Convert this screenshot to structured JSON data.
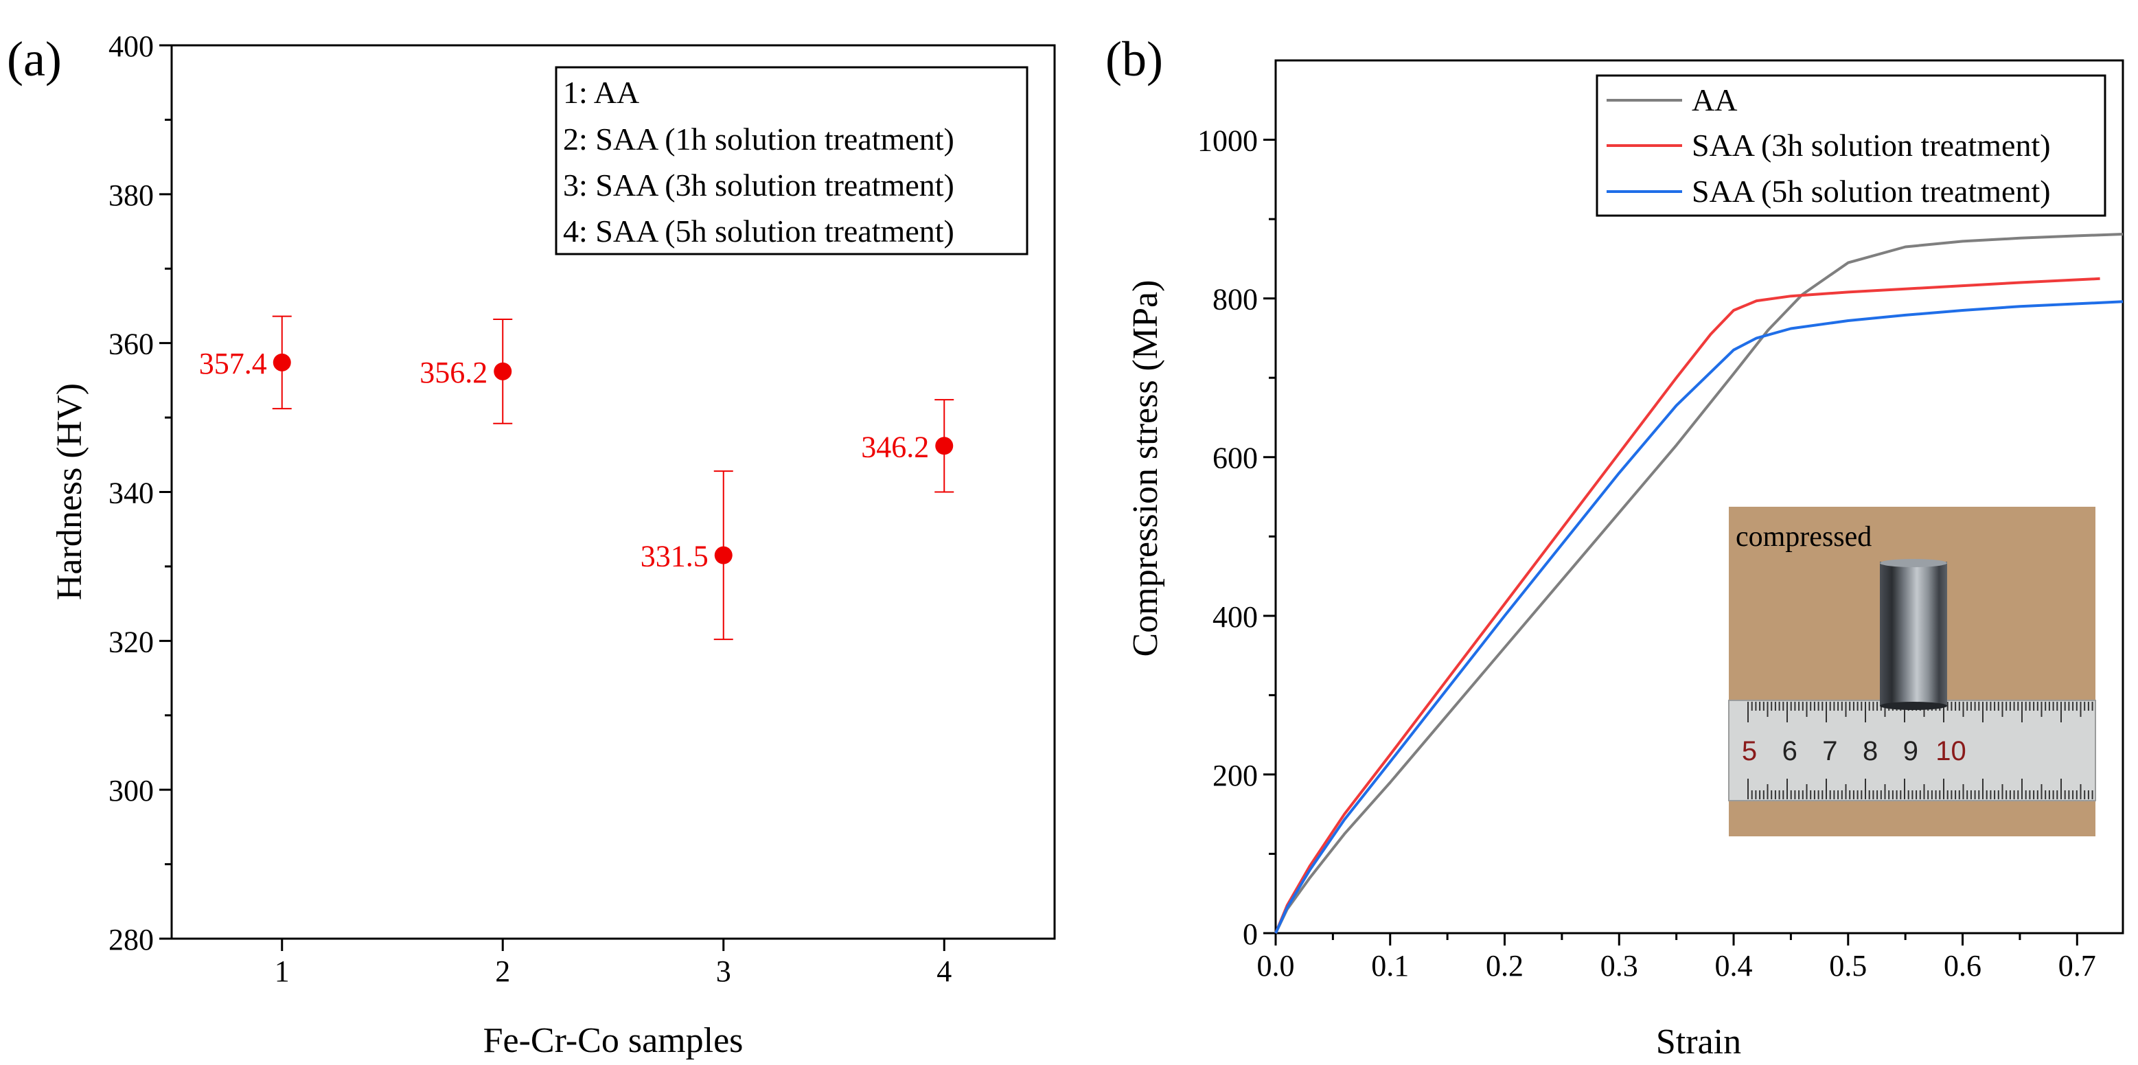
{
  "colors": {
    "marker": "#ee0000",
    "AA": "#7f7f7f",
    "SAA3": "#f03a3a",
    "SAA5": "#1f6ee8"
  },
  "chart_data": [
    {
      "type": "scatter",
      "panel_label": "(a)",
      "xlabel": "Fe-Cr-Co samples",
      "ylabel": "Hardness (HV)",
      "xlim": [
        0.5,
        4.5
      ],
      "ylim": [
        280,
        400
      ],
      "xticks": [
        1,
        2,
        3,
        4
      ],
      "yticks": [
        280,
        300,
        320,
        340,
        360,
        380,
        400
      ],
      "grid": false,
      "legend_position": "top-right",
      "legend": [
        "1: AA",
        "2: SAA (1h solution treatment)",
        "3: SAA (3h solution treatment)",
        "4: SAA (5h solution treatment)"
      ],
      "points": [
        {
          "x": 1,
          "y": 357.4,
          "err_low": 351.2,
          "err_high": 363.6,
          "label": "357.4"
        },
        {
          "x": 2,
          "y": 356.2,
          "err_low": 349.2,
          "err_high": 363.2,
          "label": "356.2"
        },
        {
          "x": 3,
          "y": 331.5,
          "err_low": 320.2,
          "err_high": 342.8,
          "label": "331.5"
        },
        {
          "x": 4,
          "y": 346.2,
          "err_low": 340.0,
          "err_high": 352.4,
          "label": "346.2"
        }
      ]
    },
    {
      "type": "line",
      "panel_label": "(b)",
      "xlabel": "Strain",
      "ylabel": "Compression stress (MPa)",
      "xlim": [
        0,
        0.74
      ],
      "ylim": [
        0,
        1100
      ],
      "xticks": [
        0.0,
        0.1,
        0.2,
        0.3,
        0.4,
        0.5,
        0.6,
        0.7
      ],
      "yticks": [
        0,
        200,
        400,
        600,
        800,
        1000
      ],
      "grid": false,
      "legend_position": "top-right",
      "series": [
        {
          "name": "AA",
          "color_key": "AA",
          "x": [
            0,
            0.01,
            0.03,
            0.06,
            0.1,
            0.15,
            0.2,
            0.25,
            0.3,
            0.35,
            0.4,
            0.43,
            0.46,
            0.5,
            0.55,
            0.6,
            0.65,
            0.7,
            0.74
          ],
          "y": [
            0,
            30,
            70,
            125,
            190,
            275,
            360,
            445,
            530,
            615,
            705,
            760,
            805,
            845,
            865,
            872,
            876,
            879,
            881
          ]
        },
        {
          "name": "SAA (3h solution treatment)",
          "color_key": "SAA3",
          "x": [
            0,
            0.01,
            0.03,
            0.06,
            0.1,
            0.15,
            0.2,
            0.25,
            0.3,
            0.35,
            0.38,
            0.4,
            0.42,
            0.45,
            0.5,
            0.55,
            0.6,
            0.65,
            0.72
          ],
          "y": [
            0,
            35,
            85,
            150,
            225,
            320,
            415,
            510,
            605,
            700,
            755,
            785,
            797,
            803,
            808,
            812,
            816,
            820,
            825
          ]
        },
        {
          "name": "SAA (5h solution treatment)",
          "color_key": "SAA5",
          "x": [
            0,
            0.01,
            0.03,
            0.06,
            0.1,
            0.15,
            0.2,
            0.25,
            0.3,
            0.35,
            0.4,
            0.42,
            0.45,
            0.5,
            0.55,
            0.6,
            0.65,
            0.74
          ],
          "y": [
            0,
            32,
            80,
            143,
            216,
            308,
            400,
            490,
            580,
            665,
            735,
            750,
            762,
            772,
            779,
            785,
            790,
            796
          ]
        }
      ],
      "inset_photo": {
        "caption": "compressed",
        "ruler_numbers": [
          "5",
          "6",
          "7",
          "8",
          "9",
          "10"
        ]
      }
    }
  ]
}
